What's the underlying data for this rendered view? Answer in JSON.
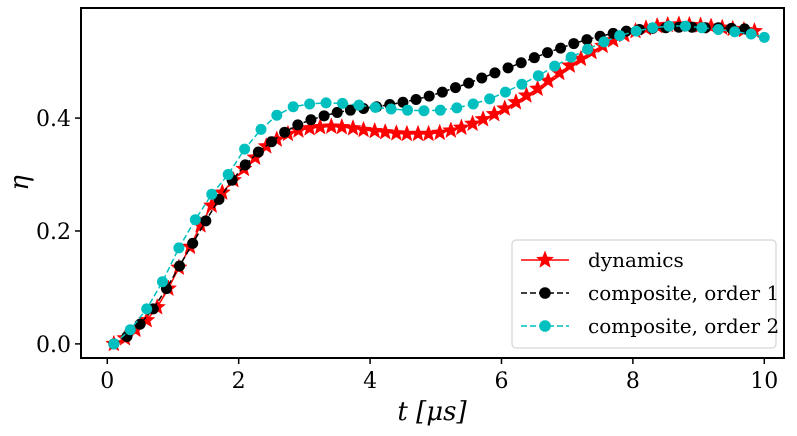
{
  "chart_data": {
    "type": "line",
    "title": "",
    "xlabel": "t [μs]",
    "ylabel": "η",
    "xlim": [
      -0.4,
      10.3
    ],
    "ylim": [
      -0.025,
      0.595
    ],
    "xticks": [
      0,
      2,
      4,
      6,
      8,
      10
    ],
    "yticks": [
      0.0,
      0.2,
      0.4
    ],
    "xtick_labels": [
      "0",
      "2",
      "4",
      "6",
      "8",
      "10"
    ],
    "ytick_labels": [
      "0.0",
      "0.2",
      "0.4"
    ],
    "grid": false,
    "legend_position": "lower-right",
    "series": [
      {
        "name": "dynamics",
        "color": "#ff0000",
        "line_style": "solid",
        "marker": "star",
        "x": [
          0.1,
          0.27,
          0.43,
          0.6,
          0.76,
          0.93,
          1.09,
          1.26,
          1.42,
          1.59,
          1.75,
          1.92,
          2.08,
          2.25,
          2.42,
          2.58,
          2.75,
          2.91,
          3.08,
          3.24,
          3.41,
          3.57,
          3.74,
          3.9,
          4.07,
          4.23,
          4.4,
          4.56,
          4.73,
          4.89,
          5.06,
          5.23,
          5.39,
          5.56,
          5.72,
          5.89,
          6.05,
          6.22,
          6.38,
          6.55,
          6.71,
          6.88,
          7.04,
          7.21,
          7.37,
          7.54,
          7.7,
          7.87,
          8.04,
          8.2,
          8.37,
          8.53,
          8.7,
          8.86,
          9.03,
          9.19,
          9.36,
          9.52,
          9.69,
          9.85
        ],
        "values": [
          0.0,
          0.01,
          0.025,
          0.042,
          0.065,
          0.098,
          0.135,
          0.172,
          0.21,
          0.245,
          0.268,
          0.29,
          0.31,
          0.33,
          0.35,
          0.362,
          0.372,
          0.378,
          0.382,
          0.384,
          0.385,
          0.384,
          0.382,
          0.379,
          0.377,
          0.375,
          0.373,
          0.372,
          0.372,
          0.372,
          0.374,
          0.378,
          0.383,
          0.39,
          0.398,
          0.407,
          0.417,
          0.428,
          0.44,
          0.452,
          0.466,
          0.48,
          0.493,
          0.505,
          0.517,
          0.528,
          0.538,
          0.547,
          0.554,
          0.559,
          0.563,
          0.565,
          0.566,
          0.565,
          0.564,
          0.562,
          0.56,
          0.558,
          0.556,
          0.554
        ]
      },
      {
        "name": "composite, order 1",
        "color": "#000000",
        "line_style": "dashed",
        "marker": "circle",
        "x": [
          0.1,
          0.3,
          0.5,
          0.7,
          0.9,
          1.1,
          1.3,
          1.5,
          1.7,
          1.9,
          2.1,
          2.3,
          2.5,
          2.7,
          2.9,
          3.1,
          3.3,
          3.5,
          3.7,
          3.9,
          4.1,
          4.3,
          4.5,
          4.7,
          4.9,
          5.1,
          5.3,
          5.5,
          5.7,
          5.9,
          6.1,
          6.3,
          6.5,
          6.7,
          6.9,
          7.1,
          7.3,
          7.5,
          7.7,
          7.9,
          8.1,
          8.3,
          8.5,
          8.7,
          8.9,
          9.1,
          9.3,
          9.5,
          9.7
        ],
        "values": [
          0.0,
          0.013,
          0.035,
          0.062,
          0.098,
          0.138,
          0.178,
          0.218,
          0.256,
          0.29,
          0.317,
          0.34,
          0.358,
          0.375,
          0.388,
          0.397,
          0.404,
          0.41,
          0.414,
          0.417,
          0.42,
          0.424,
          0.428,
          0.433,
          0.439,
          0.446,
          0.454,
          0.462,
          0.471,
          0.48,
          0.489,
          0.498,
          0.507,
          0.516,
          0.524,
          0.532,
          0.539,
          0.545,
          0.55,
          0.554,
          0.557,
          0.559,
          0.56,
          0.561,
          0.561,
          0.56,
          0.56,
          0.559,
          0.558
        ]
      },
      {
        "name": "composite, order 2",
        "color": "#00bfbf",
        "line_style": "dashed",
        "marker": "circle",
        "x": [
          0.1,
          0.35,
          0.6,
          0.84,
          1.09,
          1.34,
          1.59,
          1.84,
          2.09,
          2.34,
          2.58,
          2.83,
          3.08,
          3.33,
          3.58,
          3.83,
          4.08,
          4.32,
          4.57,
          4.82,
          5.07,
          5.32,
          5.57,
          5.82,
          6.06,
          6.31,
          6.56,
          6.81,
          7.06,
          7.31,
          7.56,
          7.8,
          8.05,
          8.3,
          8.55,
          8.8,
          9.05,
          9.3,
          9.55,
          9.8,
          10.0
        ],
        "values": [
          0.0,
          0.025,
          0.062,
          0.11,
          0.17,
          0.22,
          0.265,
          0.3,
          0.345,
          0.38,
          0.405,
          0.42,
          0.425,
          0.427,
          0.426,
          0.423,
          0.419,
          0.416,
          0.414,
          0.413,
          0.414,
          0.418,
          0.425,
          0.434,
          0.446,
          0.46,
          0.475,
          0.492,
          0.508,
          0.522,
          0.535,
          0.546,
          0.554,
          0.56,
          0.563,
          0.563,
          0.56,
          0.557,
          0.553,
          0.549,
          0.543
        ]
      }
    ]
  }
}
